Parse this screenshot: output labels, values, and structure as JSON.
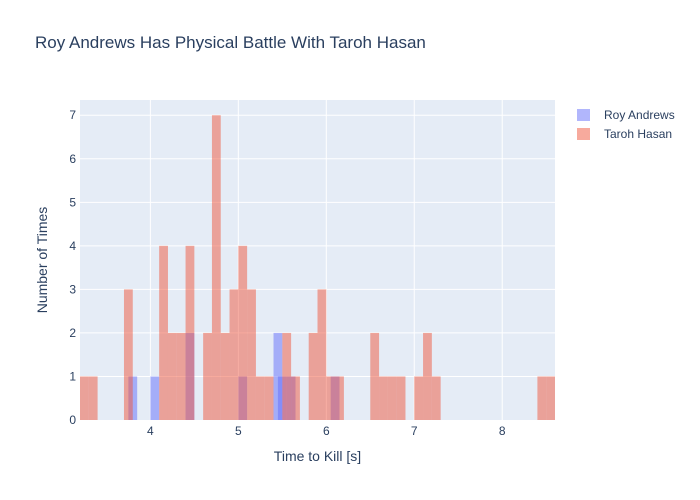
{
  "chart_data": {
    "type": "bar",
    "title": "Roy Andrews Has Physical Battle With Taroh Hasan",
    "xlabel": "Time to Kill [s]",
    "ylabel": "Number of Times",
    "xlim": [
      3.2,
      8.6
    ],
    "ylim": [
      0,
      7.35
    ],
    "x_ticks": [
      4,
      5,
      6,
      7,
      8
    ],
    "y_ticks": [
      0,
      1,
      2,
      3,
      4,
      5,
      6,
      7
    ],
    "bin_width": 0.1,
    "barmode": "overlay",
    "grid": true,
    "legend_position": "top-right",
    "series": [
      {
        "name": "Roy Andrews",
        "color": "#636efa",
        "opacity": 0.5,
        "bins": [
          {
            "x0": 3.75,
            "count": 1
          },
          {
            "x0": 4.0,
            "count": 1
          },
          {
            "x0": 4.4,
            "count": 2
          },
          {
            "x0": 5.0,
            "count": 1
          },
          {
            "x0": 5.4,
            "count": 2
          },
          {
            "x0": 5.45,
            "count": 1
          },
          {
            "x0": 5.55,
            "count": 1
          },
          {
            "x0": 6.05,
            "count": 1
          }
        ]
      },
      {
        "name": "Taroh Hasan",
        "color": "#ef553b",
        "opacity": 0.5,
        "bins": [
          {
            "x0": 3.2,
            "count": 1
          },
          {
            "x0": 3.3,
            "count": 1
          },
          {
            "x0": 3.7,
            "count": 3
          },
          {
            "x0": 4.1,
            "count": 4
          },
          {
            "x0": 4.2,
            "count": 2
          },
          {
            "x0": 4.3,
            "count": 2
          },
          {
            "x0": 4.4,
            "count": 4
          },
          {
            "x0": 4.6,
            "count": 2
          },
          {
            "x0": 4.7,
            "count": 7
          },
          {
            "x0": 4.8,
            "count": 2
          },
          {
            "x0": 4.9,
            "count": 3
          },
          {
            "x0": 5.0,
            "count": 4
          },
          {
            "x0": 5.1,
            "count": 3
          },
          {
            "x0": 5.2,
            "count": 1
          },
          {
            "x0": 5.3,
            "count": 1
          },
          {
            "x0": 5.5,
            "count": 2
          },
          {
            "x0": 5.6,
            "count": 1
          },
          {
            "x0": 5.8,
            "count": 2
          },
          {
            "x0": 5.9,
            "count": 3
          },
          {
            "x0": 6.0,
            "count": 1
          },
          {
            "x0": 6.1,
            "count": 1
          },
          {
            "x0": 6.5,
            "count": 2
          },
          {
            "x0": 6.6,
            "count": 1
          },
          {
            "x0": 6.7,
            "count": 1
          },
          {
            "x0": 6.8,
            "count": 1
          },
          {
            "x0": 7.0,
            "count": 1
          },
          {
            "x0": 7.1,
            "count": 2
          },
          {
            "x0": 7.2,
            "count": 1
          },
          {
            "x0": 8.4,
            "count": 1
          },
          {
            "x0": 8.5,
            "count": 1
          }
        ]
      }
    ]
  },
  "colors": {
    "plot_background": "#e5ecf6",
    "gridline": "#ffffff",
    "text": "#2a3f5f"
  }
}
